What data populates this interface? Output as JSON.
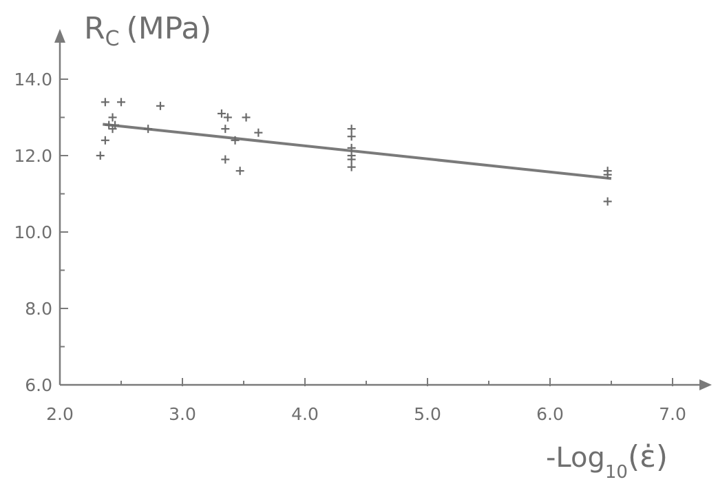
{
  "chart_data": {
    "type": "scatter",
    "title": "",
    "xlabel_prefix": "-Log",
    "xlabel_sub": "10",
    "xlabel_suffix": "(ε̇)",
    "ylabel_main": "R",
    "ylabel_sub": "C",
    "ylabel_unit": "(MPa)",
    "xlim": [
      2.0,
      7.0
    ],
    "ylim": [
      6.0,
      14.0
    ],
    "x_ticks": [
      2.0,
      3.0,
      4.0,
      5.0,
      6.0,
      7.0
    ],
    "x_tick_labels": [
      "2.0",
      "3.0",
      "4.0",
      "5.0",
      "6.0",
      "7.0"
    ],
    "x_minor_ticks": [
      2.5,
      3.5,
      4.5,
      5.5,
      6.5
    ],
    "y_ticks": [
      6.0,
      8.0,
      10.0,
      12.0,
      14.0
    ],
    "y_tick_labels": [
      "6.0",
      "8.0",
      "10.0",
      "12.0",
      "14.0"
    ],
    "y_minor_ticks": [
      7.0,
      9.0,
      11.0,
      13.0
    ],
    "grid": false,
    "marker": "+",
    "series": [
      {
        "points": [
          [
            2.33,
            12.0
          ],
          [
            2.37,
            13.4
          ],
          [
            2.5,
            13.4
          ],
          [
            2.37,
            12.4
          ],
          [
            2.43,
            13.0
          ],
          [
            2.43,
            12.7
          ],
          [
            2.45,
            12.8
          ],
          [
            2.72,
            12.7
          ],
          [
            2.82,
            13.3
          ],
          [
            2.4,
            12.8
          ],
          [
            3.32,
            13.1
          ],
          [
            3.37,
            13.0
          ],
          [
            3.52,
            13.0
          ],
          [
            3.35,
            12.7
          ],
          [
            3.43,
            12.4
          ],
          [
            3.62,
            12.6
          ],
          [
            3.35,
            11.9
          ],
          [
            3.47,
            11.6
          ],
          [
            4.38,
            12.7
          ],
          [
            4.38,
            12.5
          ],
          [
            4.38,
            12.2
          ],
          [
            4.38,
            12.0
          ],
          [
            4.38,
            11.9
          ],
          [
            4.38,
            11.7
          ],
          [
            6.47,
            11.6
          ],
          [
            6.47,
            11.5
          ],
          [
            6.47,
            10.8
          ]
        ]
      }
    ],
    "fit_line": [
      [
        2.35,
        12.82
      ],
      [
        6.5,
        11.4
      ]
    ]
  }
}
